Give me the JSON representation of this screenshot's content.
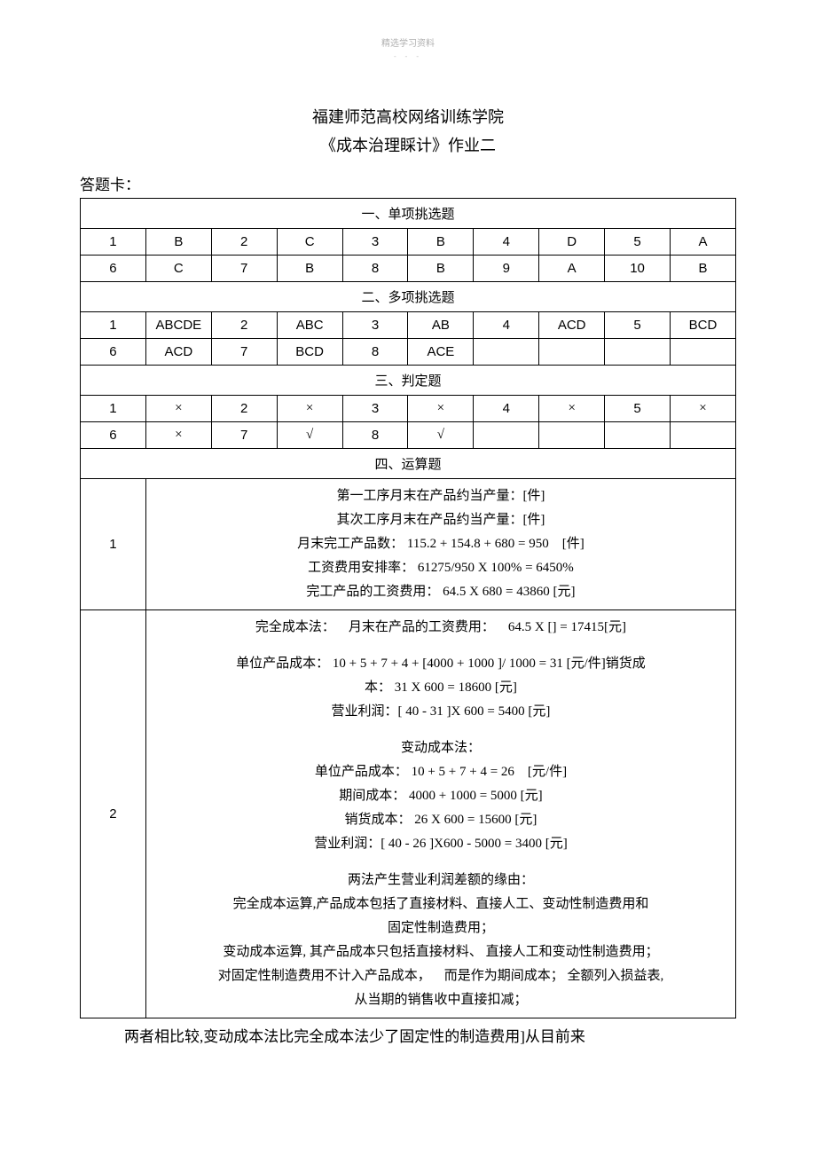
{
  "page": {
    "header_small": "精选学习资料",
    "header_dash": "- - -",
    "title": "福建师范高校网络训练学院",
    "subtitle": "《成本治理睬计》作业二",
    "answer_card_label": "答题卡："
  },
  "section1": {
    "label": "一、单项挑选题",
    "rows": [
      {
        "n1": "1",
        "a1": "B",
        "n2": "2",
        "a2": "C",
        "n3": "3",
        "a3": "B",
        "n4": "4",
        "a4": "D",
        "n5": "5",
        "a5": "A"
      },
      {
        "n1": "6",
        "a1": "C",
        "n2": "7",
        "a2": "B",
        "n3": "8",
        "a3": "B",
        "n4": "9",
        "a4": "A",
        "n5": "10",
        "a5": "B"
      }
    ]
  },
  "section2": {
    "label": "二、多项挑选题",
    "rows": [
      {
        "n1": "1",
        "a1": "ABCDE",
        "n2": "2",
        "a2": "ABC",
        "n3": "3",
        "a3": "AB",
        "n4": "4",
        "a4": "ACD",
        "n5": "5",
        "a5": "BCD"
      },
      {
        "n1": "6",
        "a1": "ACD",
        "n2": "7",
        "a2": "BCD",
        "n3": "8",
        "a3": "ACE",
        "n4": "",
        "a4": "",
        "n5": "",
        "a5": ""
      }
    ]
  },
  "section3": {
    "label": "三、判定题",
    "rows": [
      {
        "n1": "1",
        "a1": "×",
        "n2": "2",
        "a2": "×",
        "n3": "3",
        "a3": "×",
        "n4": "4",
        "a4": "×",
        "n5": "5",
        "a5": "×"
      },
      {
        "n1": "6",
        "a1": "×",
        "n2": "7",
        "a2": "√",
        "n3": "8",
        "a3": "√",
        "n4": "",
        "a4": "",
        "n5": "",
        "a5": ""
      }
    ]
  },
  "section4": {
    "label": "四、运算题",
    "q1": {
      "num": "1",
      "lines": [
        "第一工序月末在产品约当产量：[件]",
        "其次工序月末在产品约当产量：[件]",
        "月末完工产品数： 115.2 + 154.8 + 680 = 950 [件]",
        "工资费用安排率： 61275/950 X 100% = 6450%",
        "完工产品的工资费用： 64.5 X 680 = 43860 [元]"
      ]
    },
    "q2": {
      "num": "2",
      "block1": "完全成本法： 月末在产品的工资费用： 64.5 X [] = 17415[元]",
      "block2": [
        "单位产品成本： 10 + 5 + 7 + 4 + [4000 + 1000 ]/ 1000 = 31 [元/件]销货成",
        "本： 31 X 600 = 18600 [元]",
        "营业利润：[ 40 - 31 ]X 600 = 5400 [元]"
      ],
      "block3": [
        "变动成本法：",
        "单位产品成本： 10 + 5 + 7 + 4 = 26 [元/件]",
        "期间成本： 4000 + 1000 = 5000 [元]",
        "销货成本： 26 X 600 = 15600 [元]",
        "营业利润：[ 40 - 26 ]X600 - 5000 = 3400 [元]"
      ],
      "block4": [
        "两法产生营业利润差额的缘由：",
        "完全成本运算,产品成本包括了直接材料、直接人工、变动性制造费用和",
        "固定性制造费用；",
        "变动成本运算, 其产品成本只包括直接材料、 直接人工和变动性制造费用；",
        "对固定性制造费用不计入产品成本， 而是作为期间成本； 全额列入损益表,",
        "从当期的销售收中直接扣减；"
      ]
    }
  },
  "footer": "两者相比较,变动成本法比完全成本法少了固定性的制造费用]从目前来"
}
